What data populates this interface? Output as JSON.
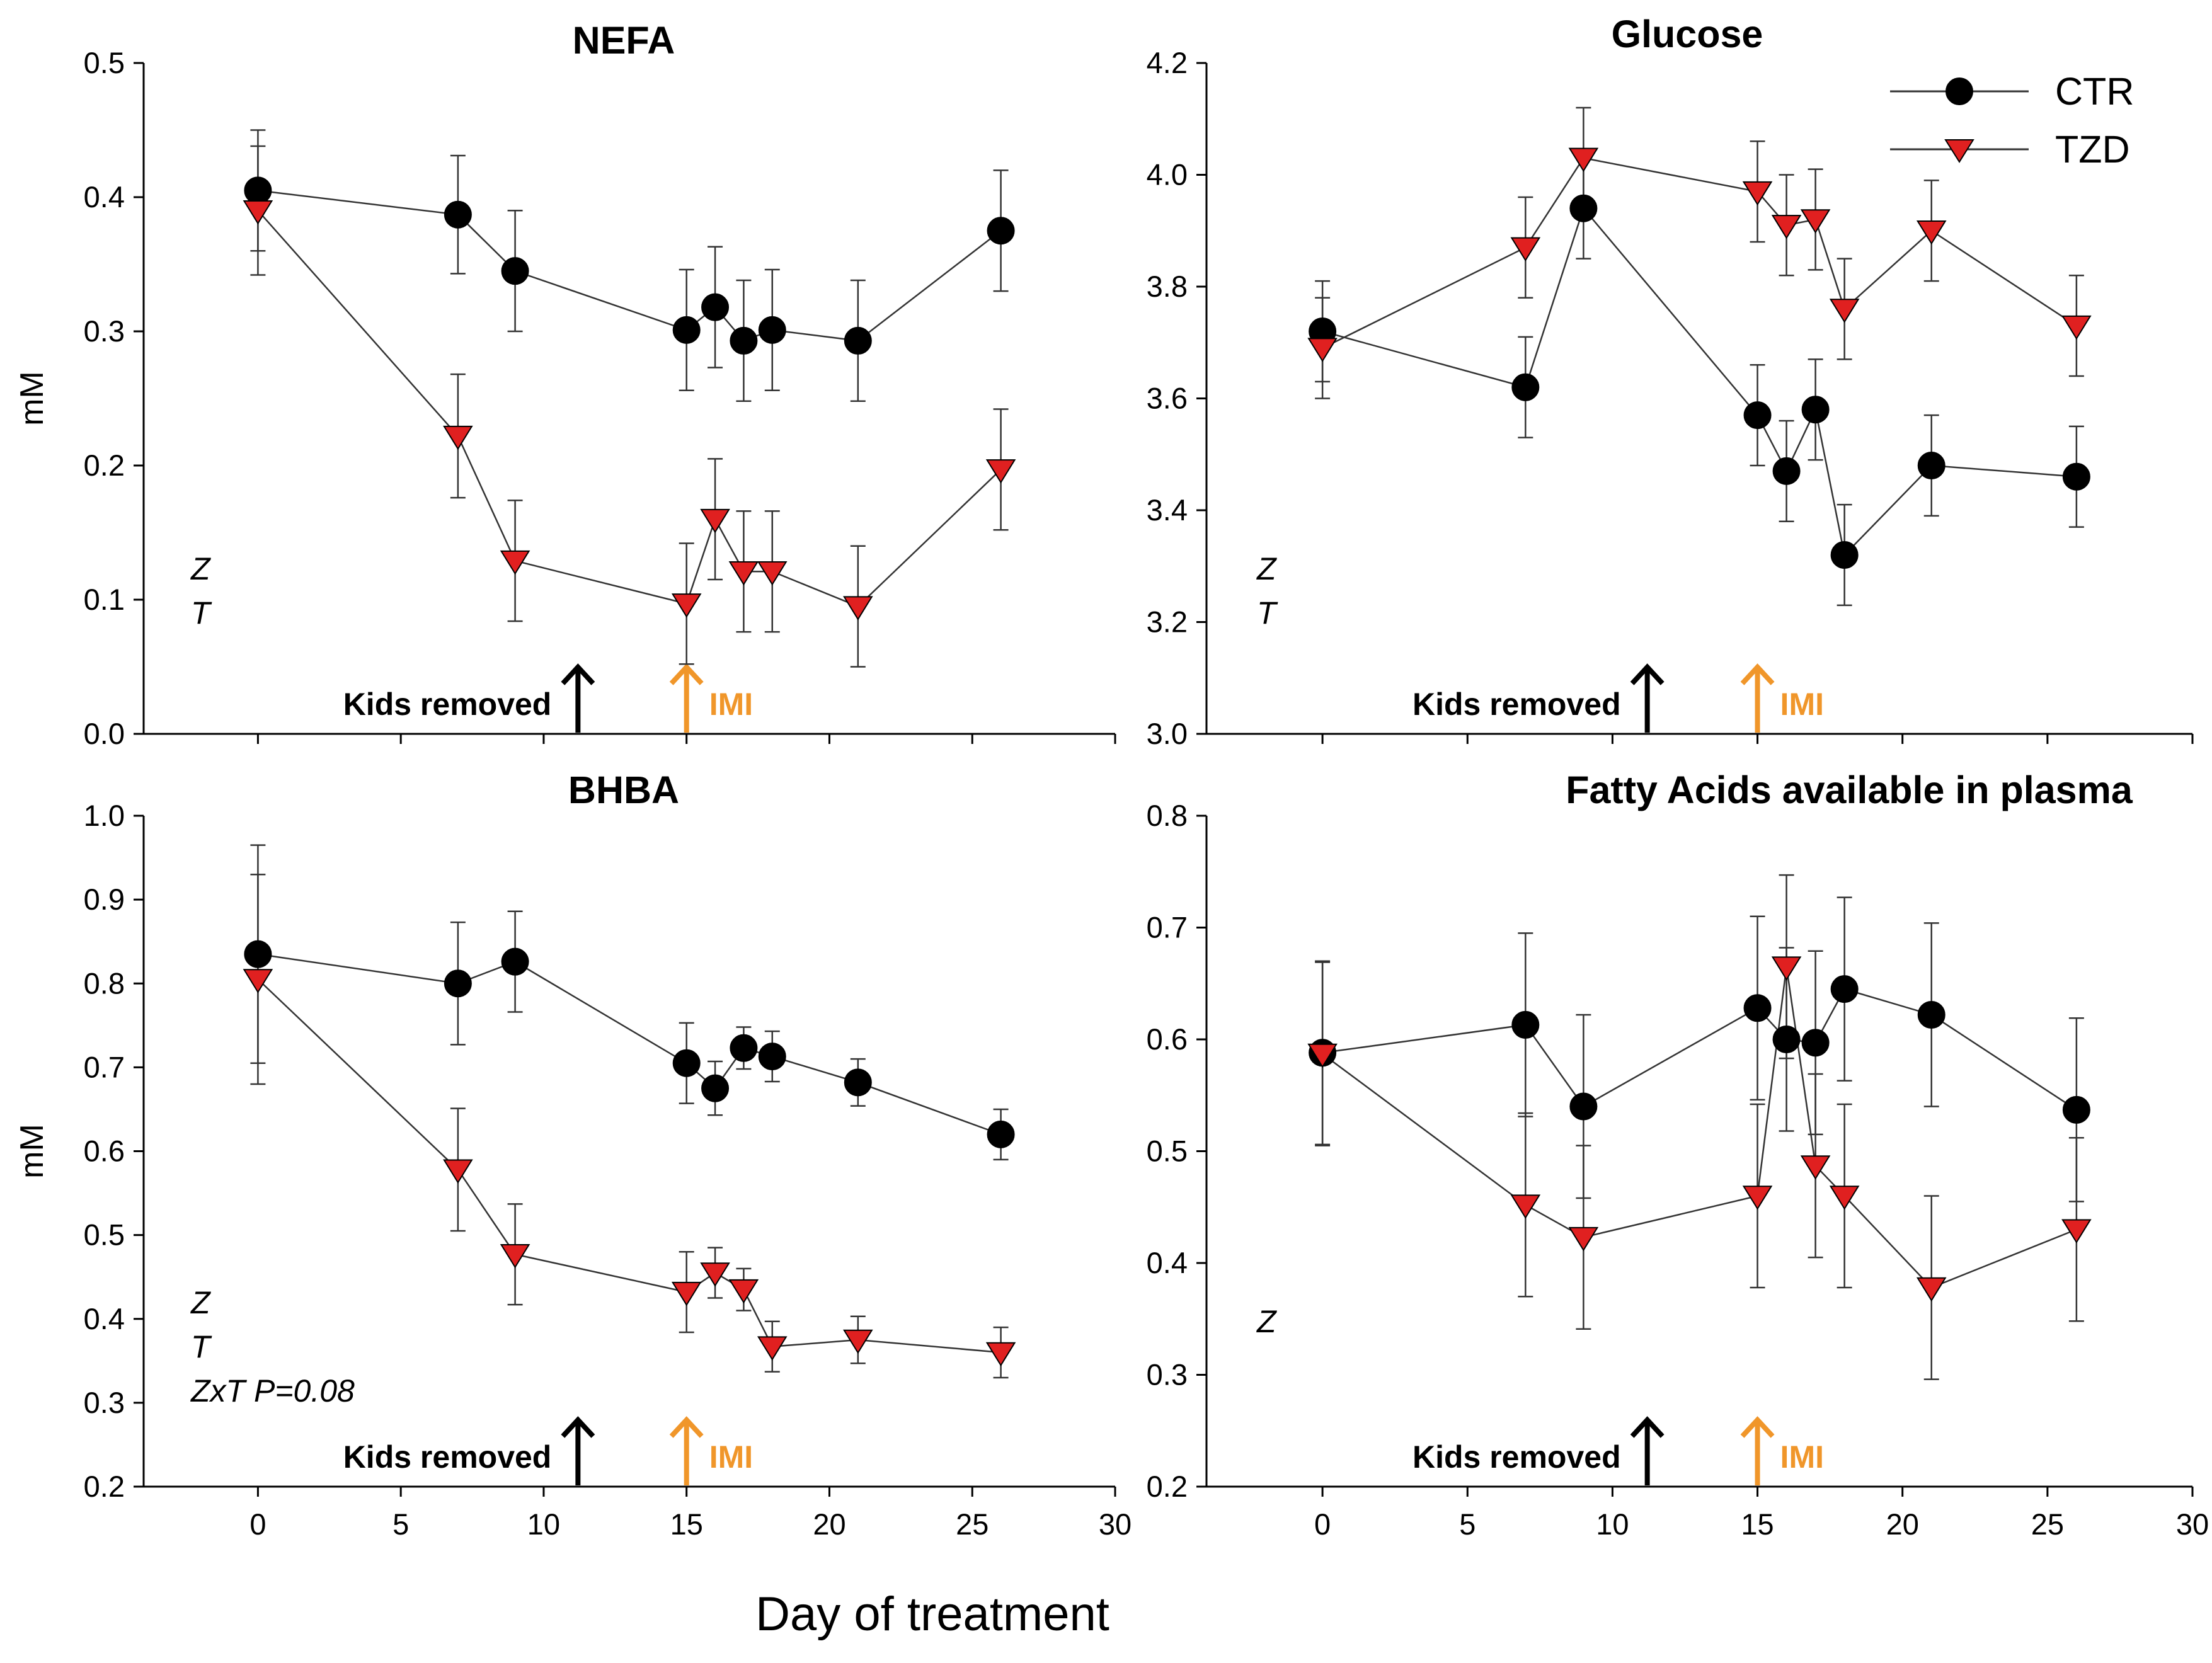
{
  "figure": {
    "xlabel": "Day of treatment",
    "colors": {
      "ctr": "#000000",
      "tzd": "#e02020",
      "imi": "#f0962a",
      "kids": "#000000"
    }
  },
  "legend": [
    {
      "label": "CTR",
      "marker": "circle"
    },
    {
      "label": "TZD",
      "marker": "triangle-down"
    }
  ],
  "chart_data": [
    {
      "type": "line",
      "title": "NEFA",
      "ylabel": "mM",
      "xlim": [
        -4,
        30
      ],
      "ylim": [
        0,
        0.5
      ],
      "yticks": [
        "0.0",
        "0.1",
        "0.2",
        "0.3",
        "0.4",
        "0.5"
      ],
      "xticks": [],
      "stats": [
        "Z",
        "T"
      ],
      "annotations": {
        "kids_label": "Kids removed",
        "kids_day": 11.2,
        "imi_label": "IMI",
        "imi_day": 15
      },
      "series": [
        {
          "name": "CTR",
          "x": [
            0,
            7,
            9,
            15,
            16,
            17,
            18,
            21,
            26
          ],
          "y": [
            0.405,
            0.387,
            0.345,
            0.301,
            0.318,
            0.293,
            0.301,
            0.293,
            0.375
          ],
          "err": [
            0.045,
            0.044,
            0.045,
            0.045,
            0.045,
            0.045,
            0.045,
            0.045,
            0.045
          ]
        },
        {
          "name": "TZD",
          "x": [
            0,
            7,
            9,
            15,
            16,
            17,
            18,
            21,
            26
          ],
          "y": [
            0.39,
            0.222,
            0.129,
            0.097,
            0.16,
            0.121,
            0.121,
            0.095,
            0.197
          ],
          "err": [
            0.048,
            0.046,
            0.045,
            0.045,
            0.045,
            0.045,
            0.045,
            0.045,
            0.045
          ]
        }
      ]
    },
    {
      "type": "line",
      "title": "Glucose",
      "ylabel": "",
      "xlim": [
        -4,
        30
      ],
      "ylim": [
        3.0,
        4.2
      ],
      "yticks": [
        "3.0",
        "3.2",
        "3.4",
        "3.6",
        "3.8",
        "4.0",
        "4.2"
      ],
      "xticks": [],
      "stats": [
        "Z",
        "T"
      ],
      "annotations": {
        "kids_label": "Kids removed",
        "kids_day": 11.2,
        "imi_label": "IMI",
        "imi_day": 15
      },
      "series": [
        {
          "name": "CTR",
          "x": [
            0,
            7,
            9,
            15,
            16,
            17,
            18,
            21,
            26
          ],
          "y": [
            3.72,
            3.62,
            3.94,
            3.57,
            3.47,
            3.58,
            3.32,
            3.48,
            3.46
          ],
          "err": [
            0.09,
            0.09,
            0.09,
            0.09,
            0.09,
            0.09,
            0.09,
            0.09,
            0.09
          ]
        },
        {
          "name": "TZD",
          "x": [
            0,
            7,
            9,
            15,
            16,
            17,
            18,
            21,
            26
          ],
          "y": [
            3.69,
            3.87,
            4.03,
            3.97,
            3.91,
            3.92,
            3.76,
            3.9,
            3.73
          ],
          "err": [
            0.09,
            0.09,
            0.09,
            0.09,
            0.09,
            0.09,
            0.09,
            0.09,
            0.09
          ]
        }
      ]
    },
    {
      "type": "line",
      "title": "BHBA",
      "ylabel": "mM",
      "xlim": [
        -4,
        30
      ],
      "ylim": [
        0.2,
        1.0
      ],
      "yticks": [
        "0.2",
        "0.3",
        "0.4",
        "0.5",
        "0.6",
        "0.7",
        "0.8",
        "0.9",
        "1.0"
      ],
      "xticks": [
        "0",
        "5",
        "10",
        "15",
        "20",
        "25",
        "30"
      ],
      "stats": [
        "Z",
        "T",
        "ZxT P=0.08"
      ],
      "annotations": {
        "kids_label": "Kids removed",
        "kids_day": 11.2,
        "imi_label": "IMI",
        "imi_day": 15
      },
      "series": [
        {
          "name": "CTR",
          "x": [
            0,
            7,
            9,
            15,
            16,
            17,
            18,
            21,
            26
          ],
          "y": [
            0.835,
            0.8,
            0.826,
            0.705,
            0.675,
            0.723,
            0.713,
            0.682,
            0.62
          ],
          "err": [
            0.13,
            0.073,
            0.06,
            0.048,
            0.032,
            0.025,
            0.03,
            0.028,
            0.03
          ]
        },
        {
          "name": "TZD",
          "x": [
            0,
            7,
            9,
            15,
            16,
            17,
            18,
            21,
            26
          ],
          "y": [
            0.805,
            0.578,
            0.477,
            0.432,
            0.455,
            0.435,
            0.367,
            0.375,
            0.36
          ],
          "err": [
            0.125,
            0.073,
            0.06,
            0.048,
            0.03,
            0.025,
            0.03,
            0.028,
            0.03
          ]
        }
      ]
    },
    {
      "type": "line",
      "title": "Fatty Acids available in plasma",
      "ylabel": "",
      "xlim": [
        -4,
        30
      ],
      "ylim": [
        0.2,
        0.8
      ],
      "yticks": [
        "0.2",
        "0.3",
        "0.4",
        "0.5",
        "0.6",
        "0.7",
        "0.8"
      ],
      "xticks": [
        "0",
        "5",
        "10",
        "15",
        "20",
        "25",
        "30"
      ],
      "stats": [
        "Z"
      ],
      "annotations": {
        "kids_label": "Kids removed",
        "kids_day": 11.2,
        "imi_label": "IMI",
        "imi_day": 15
      },
      "series": [
        {
          "name": "CTR",
          "x": [
            0,
            7,
            9,
            15,
            16,
            17,
            18,
            21,
            26
          ],
          "y": [
            0.588,
            0.613,
            0.54,
            0.628,
            0.6,
            0.597,
            0.645,
            0.622,
            0.537
          ],
          "err": [
            0.082,
            0.082,
            0.082,
            0.082,
            0.082,
            0.082,
            0.082,
            0.082,
            0.082
          ]
        },
        {
          "name": "TZD",
          "x": [
            0,
            7,
            9,
            15,
            16,
            17,
            18,
            21,
            26
          ],
          "y": [
            0.587,
            0.452,
            0.423,
            0.46,
            0.665,
            0.487,
            0.46,
            0.378,
            0.43
          ],
          "err": [
            0.082,
            0.082,
            0.082,
            0.082,
            0.082,
            0.082,
            0.082,
            0.082,
            0.082
          ]
        }
      ]
    }
  ]
}
